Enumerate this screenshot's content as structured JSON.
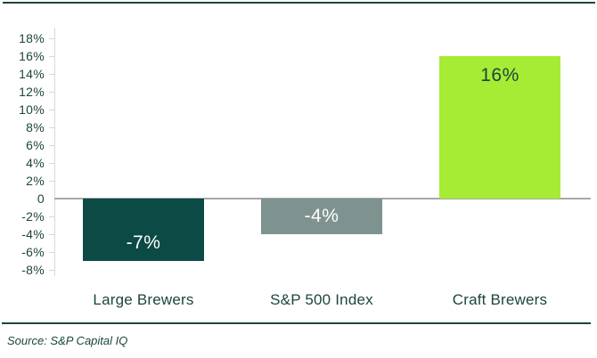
{
  "chart_data": {
    "type": "bar",
    "categories": [
      "Large Brewers",
      "S&P 500 Index",
      "Craft Brewers"
    ],
    "values": [
      -7,
      -4,
      16
    ],
    "value_labels": [
      "-7%",
      "-4%",
      "16%"
    ],
    "bar_colors": [
      "#0c4a45",
      "#7e938f",
      "#a6eb34"
    ],
    "value_label_colors": [
      "#ffffff",
      "#ffffff",
      "#1c453e"
    ],
    "title": "",
    "xlabel": "",
    "ylabel": "",
    "ylim": [
      -8,
      18
    ],
    "ytick_values": [
      18,
      16,
      14,
      12,
      10,
      8,
      6,
      4,
      2,
      0,
      -2,
      -4,
      -6,
      -8
    ],
    "ytick_labels": [
      "18%",
      "16%",
      "14%",
      "12%",
      "10%",
      "8%",
      "6%",
      "4%",
      "2%",
      "0",
      "-2%",
      "-4%",
      "-6%",
      "-8%"
    ],
    "grid": false,
    "legend": false
  },
  "colors": {
    "dark_teal_text": "#1c453e",
    "top_border": "#1c453e",
    "separator": "#1c453e",
    "axis_line": "#d8d8d8",
    "tick_mark": "#d8d8d8",
    "zero_line": "#a8a8a8",
    "background": "#ffffff"
  },
  "footer": {
    "source_label": "Source: S&P Capital IQ"
  }
}
